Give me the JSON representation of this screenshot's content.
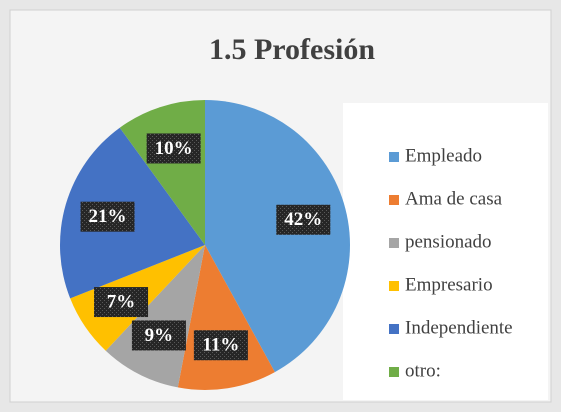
{
  "chart_data": {
    "type": "pie",
    "title": "1.5 Profesión",
    "categories": [
      "Empleado",
      "Ama de casa",
      "pensionado",
      "Empresario",
      "Independiente",
      "otro:"
    ],
    "values": [
      42,
      11,
      9,
      7,
      21,
      10
    ],
    "value_labels": [
      "42%",
      "11%",
      "9%",
      "7%",
      "21%",
      "10%"
    ],
    "colors": [
      "#5b9bd5",
      "#ed7d31",
      "#a5a5a5",
      "#ffc000",
      "#4472c4",
      "#70ad47"
    ],
    "legend": "right"
  }
}
